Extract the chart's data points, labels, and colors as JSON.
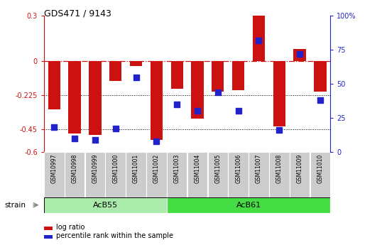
{
  "title": "GDS471 / 9143",
  "samples": [
    "GSM10997",
    "GSM10998",
    "GSM10999",
    "GSM11000",
    "GSM11001",
    "GSM11002",
    "GSM11003",
    "GSM11004",
    "GSM11005",
    "GSM11006",
    "GSM11007",
    "GSM11008",
    "GSM11009",
    "GSM11010"
  ],
  "log_ratio": [
    -0.32,
    -0.48,
    -0.49,
    -0.13,
    -0.03,
    -0.52,
    -0.18,
    -0.38,
    -0.2,
    -0.19,
    0.3,
    -0.43,
    0.08,
    -0.2
  ],
  "percentile_rank": [
    18,
    10,
    9,
    17,
    55,
    8,
    35,
    30,
    44,
    30,
    82,
    16,
    72,
    38
  ],
  "groups": [
    {
      "label": "AcB55",
      "start": 0,
      "end": 5,
      "color": "#aaeaaa"
    },
    {
      "label": "AcB61",
      "start": 6,
      "end": 13,
      "color": "#44dd44"
    }
  ],
  "ylim_left": [
    -0.6,
    0.3
  ],
  "ylim_right": [
    0,
    100
  ],
  "bar_color": "#cc1111",
  "dot_color": "#2222cc",
  "bar_width": 0.6,
  "dot_size": 28,
  "yticks_left": [
    0.3,
    0.0,
    -0.225,
    -0.45,
    -0.6
  ],
  "ytick_labels_left": [
    "0.3",
    "0",
    "-0.225",
    "-0.45",
    "-0.6"
  ],
  "yticks_right": [
    100,
    75,
    50,
    25,
    0
  ],
  "ytick_labels_right": [
    "100%",
    "75",
    "50",
    "25",
    "0"
  ],
  "strain_label": "strain",
  "legend_bar": "log ratio",
  "legend_dot": "percentile rank within the sample"
}
